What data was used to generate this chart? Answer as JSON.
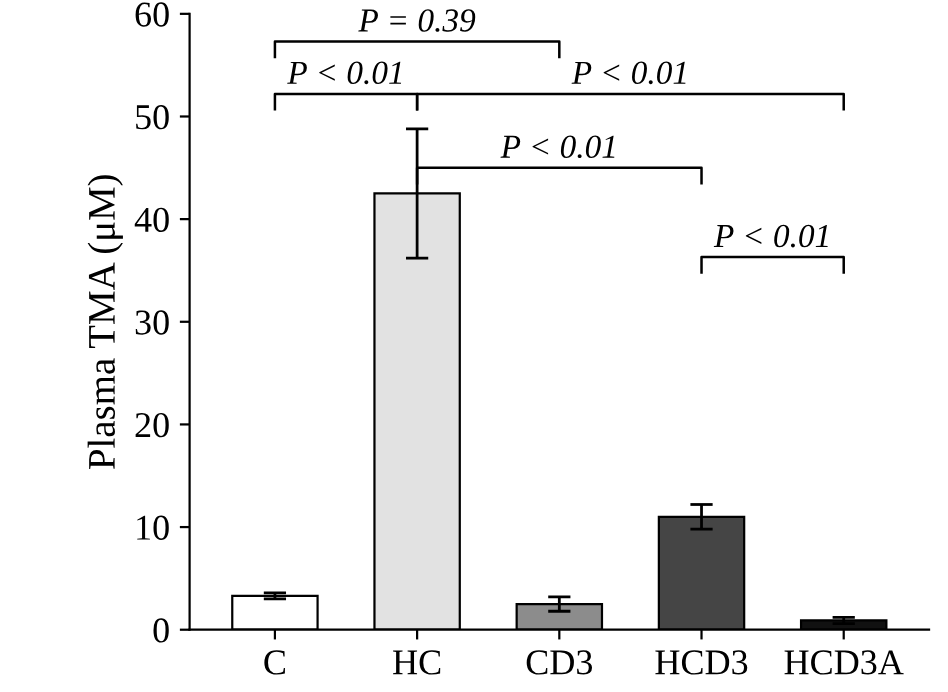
{
  "chart_data": {
    "type": "bar",
    "ylabel": "Plasma TMA (μM)",
    "categories": [
      "C",
      "HC",
      "CD3",
      "HCD3",
      "HCD3A"
    ],
    "values": [
      3.3,
      42.5,
      2.5,
      11,
      0.9
    ],
    "errors": [
      0.3,
      6.3,
      0.7,
      1.2,
      0.3
    ],
    "colors": [
      "#ffffff",
      "#e2e2e2",
      "#8c8c8c",
      "#454545",
      "#111111"
    ],
    "ylim": [
      0,
      60
    ],
    "yticks": [
      0,
      10,
      20,
      30,
      40,
      50,
      60
    ],
    "annotations": [
      "P = 0.39",
      "P < 0.01",
      "P < 0.01",
      "P < 0.01",
      "P < 0.01"
    ]
  }
}
